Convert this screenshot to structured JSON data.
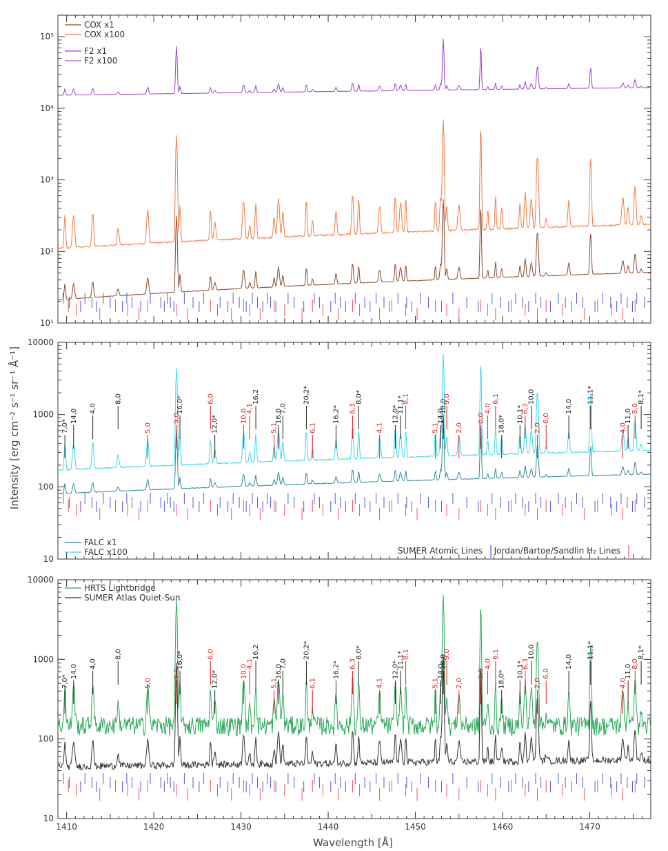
{
  "chart_data": [
    {
      "type": "line",
      "panel": "top",
      "y_scale": "log",
      "ylim": [
        10,
        200000
      ],
      "xlim": [
        1409,
        1477
      ],
      "y_ticks": [
        10,
        100,
        1000,
        10000,
        100000
      ],
      "series": [
        {
          "name": "COX x1",
          "color": "#8b4a2a",
          "continuum": [
            21,
            51
          ]
        },
        {
          "name": "COX x100",
          "color": "#f07b45",
          "continuum": [
            110,
            240
          ]
        },
        {
          "name": "F2 x1",
          "color": "#9d3fd0",
          "continuum": [
            15200,
            19500
          ]
        },
        {
          "name": "F2 x100",
          "color": "#b04fe0",
          "continuum": [
            15200,
            19500
          ]
        }
      ],
      "legend_position": "top-left"
    },
    {
      "type": "line",
      "panel": "middle",
      "y_scale": "log",
      "ylim": [
        10,
        10000
      ],
      "xlim": [
        1409,
        1477
      ],
      "y_ticks": [
        10,
        100,
        1000,
        10000
      ],
      "series": [
        {
          "name": "FALC x1",
          "color": "#2e8a9c",
          "continuum": [
            80,
            150
          ]
        },
        {
          "name": "FALC x100",
          "color": "#3ad8ec",
          "continuum": [
            170,
            320
          ]
        }
      ],
      "legend_position": "bottom-left",
      "line_legend": {
        "atomic": "SUMER Atomic Lines",
        "h2": "Jordan/Bartoe/Sandlin H₂ Lines"
      }
    },
    {
      "type": "line",
      "panel": "bottom",
      "y_scale": "log",
      "ylim": [
        10,
        10000
      ],
      "xlim": [
        1409,
        1477
      ],
      "y_ticks": [
        10,
        100,
        1000,
        10000
      ],
      "series": [
        {
          "name": "HRTS Lightbridge",
          "color": "#2aa85a",
          "continuum": [
            150,
            150
          ]
        },
        {
          "name": "SUMER Atlas Quiet-Sun",
          "color": "#333333",
          "continuum": [
            45,
            55
          ]
        }
      ],
      "legend_position": "top-left"
    }
  ],
  "labels": {
    "ylabel": "Intensity [erg cm⁻² s⁻¹ sr⁻¹ Å⁻¹]",
    "xlabel": "Wavelength [Å]",
    "x_ticks": [
      1410,
      1420,
      1430,
      1440,
      1450,
      1460,
      1470
    ],
    "y_tick_text": {
      "10": "10¹",
      "100": "10²",
      "1000": "10³",
      "10000": "10⁴",
      "100000": "10⁵"
    }
  },
  "line_ids": [
    {
      "x": 1409.8,
      "label": "7,0*",
      "color": "black"
    },
    {
      "x": 1410.8,
      "label": "14,0",
      "color": "black"
    },
    {
      "x": 1413.0,
      "label": "4,0",
      "color": "black"
    },
    {
      "x": 1415.9,
      "label": "8,0",
      "color": "black"
    },
    {
      "x": 1419.3,
      "label": "5,0",
      "color": "red"
    },
    {
      "x": 1422.6,
      "label": "9,0",
      "color": "red"
    },
    {
      "x": 1423.0,
      "label": "16,0*",
      "color": "black"
    },
    {
      "x": 1426.5,
      "label": "6,0",
      "color": "red"
    },
    {
      "x": 1427.0,
      "label": "12,0*",
      "color": "black"
    },
    {
      "x": 1430.3,
      "label": "10,0",
      "color": "red"
    },
    {
      "x": 1431.0,
      "label": "4,1",
      "color": "red"
    },
    {
      "x": 1431.7,
      "label": "16,2",
      "color": "black"
    },
    {
      "x": 1433.8,
      "label": "5,1",
      "color": "red"
    },
    {
      "x": 1434.3,
      "label": "16,0",
      "color": "black"
    },
    {
      "x": 1434.8,
      "label": "7,0",
      "color": "black"
    },
    {
      "x": 1437.5,
      "label": "20,2*",
      "color": "black"
    },
    {
      "x": 1438.2,
      "label": "6,1",
      "color": "red"
    },
    {
      "x": 1440.9,
      "label": "16,2*",
      "color": "black"
    },
    {
      "x": 1442.8,
      "label": "6,3",
      "color": "red"
    },
    {
      "x": 1443.5,
      "label": "8,0*",
      "color": "black"
    },
    {
      "x": 1445.9,
      "label": "4,1",
      "color": "red"
    },
    {
      "x": 1447.7,
      "label": "12,0*",
      "color": "black"
    },
    {
      "x": 1448.3,
      "label": "11,1*",
      "color": "black"
    },
    {
      "x": 1448.9,
      "label": "8,1",
      "color": "red"
    },
    {
      "x": 1452.3,
      "label": "5,1",
      "color": "red"
    },
    {
      "x": 1452.9,
      "label": "14,0",
      "color": "black"
    },
    {
      "x": 1453.2,
      "label": "18,0",
      "color": "black"
    },
    {
      "x": 1453.6,
      "label": "9,0",
      "color": "red"
    },
    {
      "x": 1455.0,
      "label": "2,0",
      "color": "red"
    },
    {
      "x": 1457.5,
      "label": "0,0",
      "color": "red"
    },
    {
      "x": 1458.3,
      "label": "4,0",
      "color": "red"
    },
    {
      "x": 1459.2,
      "label": "6,1",
      "color": "red"
    },
    {
      "x": 1459.9,
      "label": "18,0*",
      "color": "black"
    },
    {
      "x": 1462.0,
      "label": "10,1*",
      "color": "black"
    },
    {
      "x": 1462.6,
      "label": "6,3",
      "color": "red"
    },
    {
      "x": 1463.3,
      "label": "10,0",
      "color": "black"
    },
    {
      "x": 1464.0,
      "label": "2,0",
      "color": "red"
    },
    {
      "x": 1465.0,
      "label": "6,0",
      "color": "red"
    },
    {
      "x": 1467.6,
      "label": "14,0",
      "color": "black"
    },
    {
      "x": 1470.1,
      "label": "11,1*",
      "color": "black"
    },
    {
      "x": 1473.8,
      "label": "4,0",
      "color": "red"
    },
    {
      "x": 1474.4,
      "label": "11,0",
      "color": "black"
    },
    {
      "x": 1475.2,
      "label": "8,0",
      "color": "red"
    },
    {
      "x": 1475.9,
      "label": "8,1*",
      "color": "black"
    }
  ],
  "colors": {
    "atomic_tick": "#5555dd",
    "h2_tick": "#ee5566",
    "axis": "#333333",
    "red_label": "#e02020"
  }
}
